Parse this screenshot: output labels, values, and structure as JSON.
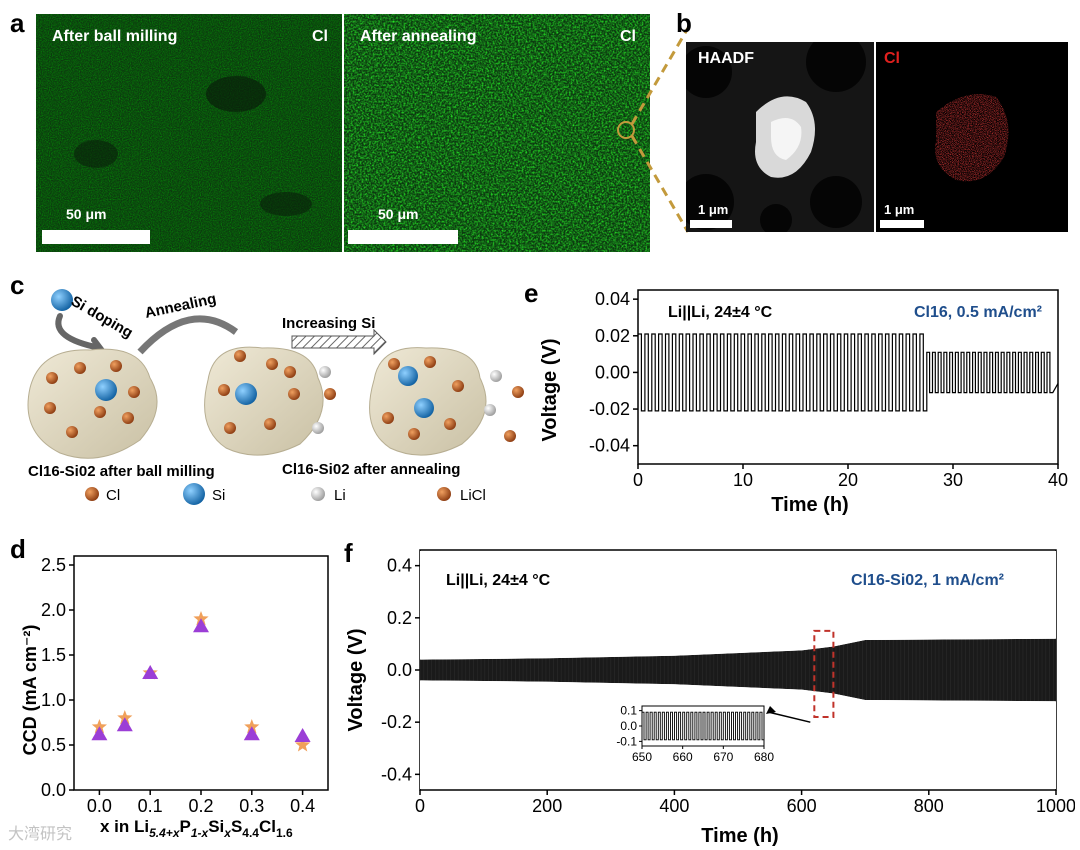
{
  "panels": {
    "a": {
      "letter": "a",
      "left": {
        "title": "After ball milling",
        "element": "Cl",
        "scale": "50 μm"
      },
      "right": {
        "title": "After annealing",
        "element": "Cl",
        "scale": "50 μm"
      }
    },
    "b": {
      "letter": "b",
      "left": {
        "title": "HAADF",
        "scale": "1 μm"
      },
      "right": {
        "title": "Cl",
        "scale": "1 μm"
      }
    },
    "c": {
      "letter": "c",
      "si_doping": "Si doping",
      "annealing": "Annealing",
      "increasing_si": "Increasing Si",
      "caption_left": "Cl16-Si02 after ball milling",
      "caption_right": "Cl16-Si02 after annealing",
      "legend": [
        {
          "label": "Cl",
          "color": "#b5531a"
        },
        {
          "label": "Si",
          "color": "#1f7fc4"
        },
        {
          "label": "Li",
          "color": "#cfcfcf"
        },
        {
          "label": "LiCl",
          "color": "#c9744a"
        }
      ]
    },
    "d": {
      "letter": "d"
    },
    "e": {
      "letter": "e"
    },
    "f": {
      "letter": "f"
    }
  },
  "chart_data": [
    {
      "id": "d",
      "type": "scatter",
      "ylabel": "CCD (mA cm⁻²)",
      "xlabel_parts": [
        "x in Li",
        "5.4+x",
        "P",
        "1-x",
        "Si",
        "x",
        "S",
        "4.4",
        "Cl",
        "1.6"
      ],
      "x_ticks": [
        "0.0",
        "0.1",
        "0.2",
        "0.3",
        "0.4"
      ],
      "y_ticks": [
        "0.0",
        "0.5",
        "1.0",
        "1.5",
        "2.0",
        "2.5"
      ],
      "xlim": [
        -0.05,
        0.45
      ],
      "ylim": [
        0,
        2.6
      ],
      "series": [
        {
          "marker": "star",
          "color": "#f0a05a",
          "x": [
            0.0,
            0.05,
            0.1,
            0.2,
            0.3,
            0.4
          ],
          "y": [
            0.7,
            0.8,
            1.3,
            1.9,
            0.7,
            0.5
          ]
        },
        {
          "marker": "triangle",
          "color": "#9b3ed6",
          "x": [
            0.0,
            0.05,
            0.1,
            0.2,
            0.3,
            0.4
          ],
          "y": [
            0.62,
            0.72,
            1.3,
            1.82,
            0.62,
            0.6
          ]
        }
      ]
    },
    {
      "id": "e",
      "type": "line",
      "ylabel": "Voltage (V)",
      "xlabel": "Time (h)",
      "annotation_left": "Li||Li, 24±4 °C",
      "annotation_right": "Cl16, 0.5 mA/cm²",
      "annotation_right_color": "#1f4e8c",
      "x_ticks": [
        "0",
        "10",
        "20",
        "30",
        "40"
      ],
      "y_ticks": [
        "-0.04",
        "-0.02",
        "0.00",
        "0.02",
        "0.04"
      ],
      "xlim": [
        0,
        40
      ],
      "ylim": [
        -0.05,
        0.045
      ],
      "segments": [
        {
          "from": 0,
          "to": 27.5,
          "cycles": 42,
          "amplitude": 0.021
        },
        {
          "from": 27.5,
          "to": 39.5,
          "cycles": 22,
          "amplitude": 0.011
        }
      ]
    },
    {
      "id": "f",
      "type": "area",
      "ylabel": "Voltage (V)",
      "xlabel": "Time (h)",
      "annotation_left": "Li||Li, 24±4 °C",
      "annotation_right": "Cl16-Si02, 1 mA/cm²",
      "annotation_right_color": "#1f4e8c",
      "x_ticks": [
        "0",
        "200",
        "400",
        "600",
        "800",
        "1000"
      ],
      "y_ticks": [
        "-0.4",
        "-0.2",
        "0.0",
        "0.2",
        "0.4"
      ],
      "xlim": [
        0,
        1000
      ],
      "ylim": [
        -0.46,
        0.46
      ],
      "envelope": {
        "x": [
          0,
          200,
          400,
          600,
          650,
          700,
          1000
        ],
        "upper": [
          0.04,
          0.045,
          0.055,
          0.075,
          0.09,
          0.115,
          0.12
        ],
        "lower": [
          -0.04,
          -0.045,
          -0.055,
          -0.075,
          -0.09,
          -0.115,
          -0.12
        ]
      },
      "highlight_range": [
        620,
        650
      ],
      "inset": {
        "x_ticks": [
          "650",
          "660",
          "670",
          "680"
        ],
        "y_ticks": [
          "-0.1",
          "0.0",
          "0.1"
        ],
        "xlim": [
          650,
          680
        ],
        "ylim": [
          -0.13,
          0.13
        ],
        "cycles": 30,
        "amplitude": 0.09
      }
    }
  ],
  "watermark": "大湾研究"
}
